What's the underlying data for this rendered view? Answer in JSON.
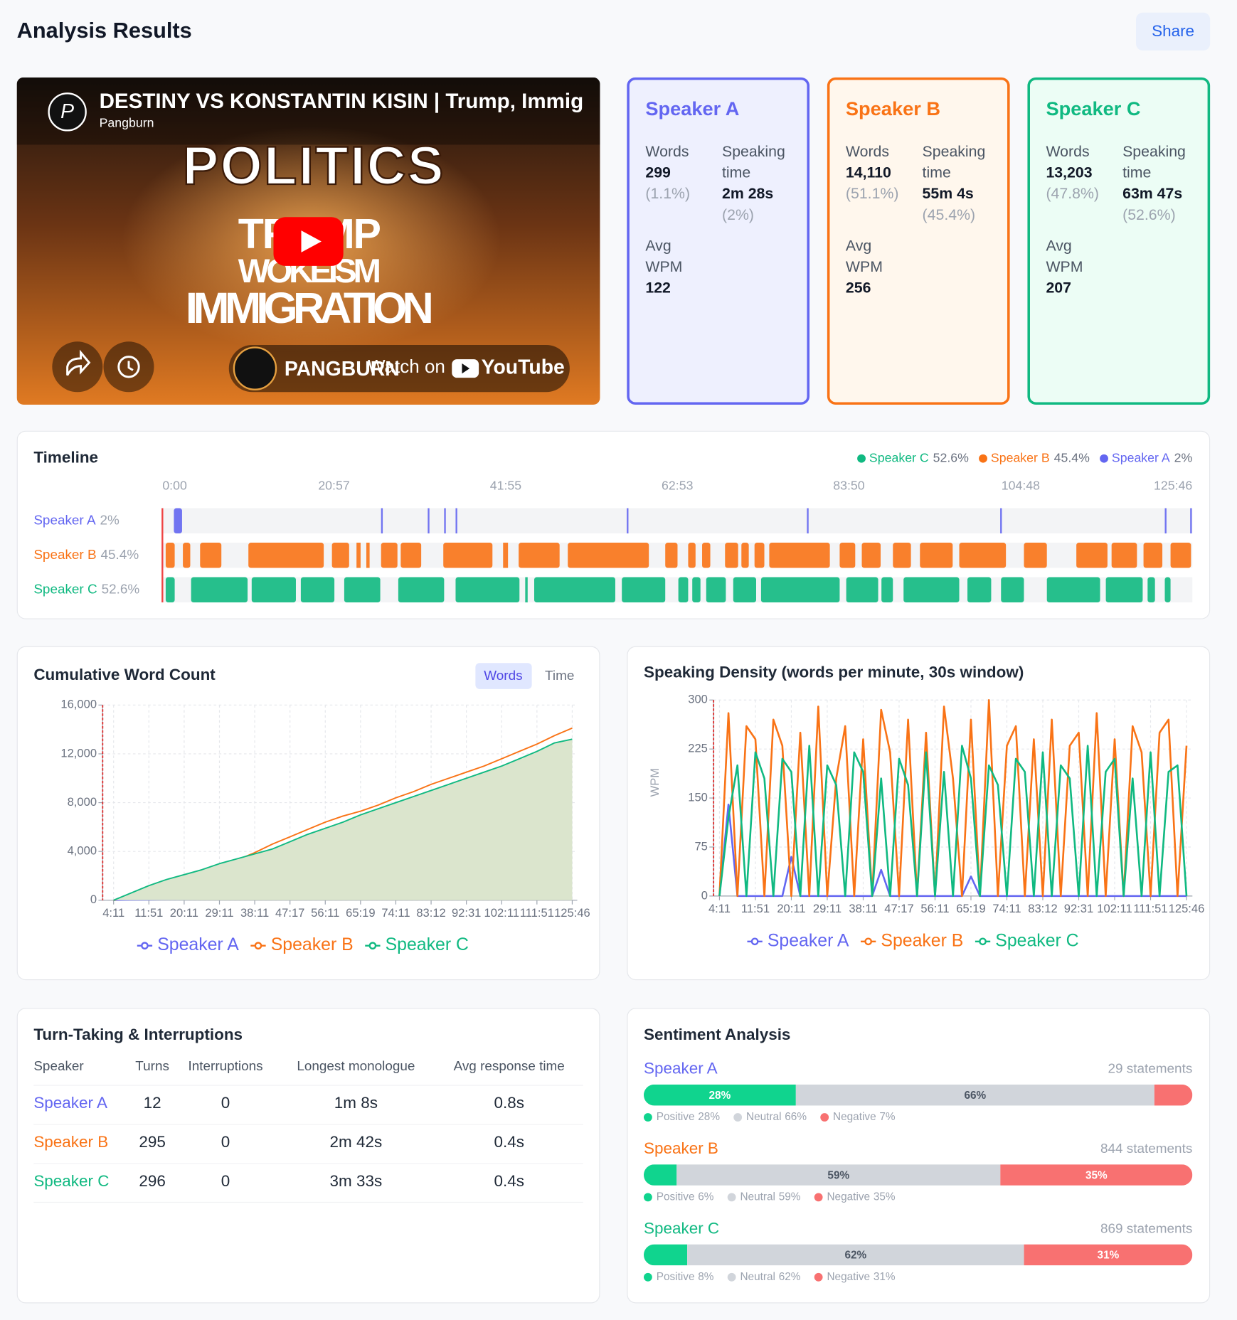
{
  "header": {
    "title": "Analysis Results",
    "share": "Share"
  },
  "video": {
    "title": "DESTINY VS KONSTANTIN KISIN | Trump, Immig",
    "channel": "Pangburn",
    "thumbnail_lines": [
      "POLITICS",
      "TRUMP",
      "WOKEISM",
      "IMMIGRATION"
    ],
    "brand": "PANGBURN",
    "watch_on": "Watch on",
    "platform": "YouTube"
  },
  "speakers": [
    {
      "name": "Speaker A",
      "color": "#6366f1",
      "background": "#eef0fe",
      "words_label": "Words",
      "words": "299",
      "words_share": "(1.1%)",
      "time_label": "Speaking time",
      "time": "2m 28s",
      "time_share": "(2%)",
      "wpm_label": "Avg WPM",
      "wpm": "122"
    },
    {
      "name": "Speaker B",
      "color": "#f97316",
      "background": "#fff7ed",
      "words_label": "Words",
      "words": "14,110",
      "words_share": "(51.1%)",
      "time_label": "Speaking time",
      "time": "55m 4s",
      "time_share": "(45.4%)",
      "wpm_label": "Avg WPM",
      "wpm": "256"
    },
    {
      "name": "Speaker C",
      "color": "#10b981",
      "background": "#ecfdf5",
      "words_label": "Words",
      "words": "13,203",
      "words_share": "(47.8%)",
      "time_label": "Speaking time",
      "time": "63m 47s",
      "time_share": "(52.6%)",
      "wpm_label": "Avg WPM",
      "wpm": "207"
    }
  ],
  "chart_data": [
    {
      "type": "timeline",
      "title": "Timeline",
      "xlim": [
        0,
        125.77
      ],
      "xticks": [
        {
          "value": 0,
          "label": "0:00"
        },
        {
          "value": 20.95,
          "label": "20:57"
        },
        {
          "value": 41.92,
          "label": "41:55"
        },
        {
          "value": 62.88,
          "label": "62:53"
        },
        {
          "value": 83.83,
          "label": "83:50"
        },
        {
          "value": 104.8,
          "label": "104:48"
        },
        {
          "value": 125.77,
          "label": "125:46"
        }
      ],
      "series": [
        {
          "name": "Speaker A",
          "share": "2%",
          "color": "#6366f1",
          "segments": [
            [
              1.4,
              2.4
            ],
            [
              26.7,
              26.9
            ],
            [
              32.4,
              32.6
            ],
            [
              34.4,
              34.6
            ],
            [
              35.8,
              36.0
            ],
            [
              56.7,
              56.9
            ],
            [
              78.7,
              78.9
            ],
            [
              102.3,
              102.5
            ],
            [
              122.4,
              122.6
            ],
            [
              125.5,
              125.7
            ]
          ]
        },
        {
          "name": "Speaker B",
          "share": "45.4%",
          "color": "#f97316",
          "segments": [
            [
              0.4,
              1.5
            ],
            [
              2.5,
              3.4
            ],
            [
              4.6,
              7.2
            ],
            [
              10.5,
              19.7
            ],
            [
              20.7,
              22.8
            ],
            [
              23.7,
              24.2
            ],
            [
              24.9,
              25.3
            ],
            [
              26.7,
              28.7
            ],
            [
              29.1,
              31.6
            ],
            [
              34.3,
              40.3
            ],
            [
              41.6,
              42.2
            ],
            [
              43.5,
              48.5
            ],
            [
              49.5,
              59.4
            ],
            [
              61.4,
              62.9
            ],
            [
              64.2,
              65.1
            ],
            [
              65.9,
              66.9
            ],
            [
              68.7,
              70.3
            ],
            [
              70.7,
              71.6
            ],
            [
              72.3,
              73.5
            ],
            [
              74.1,
              81.5
            ],
            [
              82.7,
              84.6
            ],
            [
              85.4,
              87.7
            ],
            [
              89.2,
              91.4
            ],
            [
              92.5,
              96.5
            ],
            [
              97.3,
              103.0
            ],
            [
              105.2,
              108.0
            ],
            [
              111.6,
              115.4
            ],
            [
              115.9,
              119.0
            ],
            [
              119.8,
              122.1
            ],
            [
              123.1,
              125.6
            ]
          ]
        },
        {
          "name": "Speaker C",
          "share": "52.6%",
          "color": "#10b981",
          "segments": [
            [
              0.4,
              1.5
            ],
            [
              3.5,
              10.4
            ],
            [
              10.9,
              16.3
            ],
            [
              16.9,
              21.0
            ],
            [
              22.2,
              26.6
            ],
            [
              28.8,
              34.4
            ],
            [
              35.8,
              43.6
            ],
            [
              44.3,
              44.6
            ],
            [
              45.4,
              55.3
            ],
            [
              56.1,
              61.4
            ],
            [
              63.0,
              64.2
            ],
            [
              64.7,
              65.7
            ],
            [
              66.4,
              68.8
            ],
            [
              69.7,
              72.5
            ],
            [
              73.1,
              82.7
            ],
            [
              83.5,
              87.4
            ],
            [
              87.8,
              89.2
            ],
            [
              90.5,
              97.3
            ],
            [
              98.3,
              101.2
            ],
            [
              102.4,
              105.2
            ],
            [
              108.0,
              114.5
            ],
            [
              115.2,
              119.7
            ],
            [
              120.3,
              121.2
            ],
            [
              122.4,
              123.1
            ]
          ]
        }
      ]
    },
    {
      "type": "line",
      "title": "Cumulative Word Count",
      "toggle": [
        "Words",
        "Time"
      ],
      "categories": [
        "4:11",
        null,
        "11:51",
        null,
        "20:11",
        null,
        "29:11",
        null,
        "38:11",
        null,
        "47:17",
        null,
        "56:11",
        null,
        "65:19",
        null,
        "74:11",
        null,
        "83:12",
        null,
        "92:31",
        null,
        "102:11",
        null,
        "111:51",
        null,
        "125:46"
      ],
      "ylim": [
        0,
        16000
      ],
      "yticks": [
        0,
        {
          "value": 4000,
          "label": "4,000"
        },
        {
          "value": 8000,
          "label": "8,000"
        },
        {
          "value": 12000,
          "label": "12,000"
        },
        {
          "value": 16000,
          "label": "16,000"
        }
      ],
      "grid": true,
      "series": [
        {
          "name": "Speaker A",
          "color": "#6366f1",
          "values": [
            0,
            20,
            30,
            50,
            60,
            70,
            80,
            90,
            100,
            110,
            120,
            130,
            140,
            150,
            160,
            170,
            180,
            190,
            200,
            210,
            220,
            230,
            240,
            260,
            270,
            280,
            299
          ]
        },
        {
          "name": "Speaker B",
          "color": "#f97316",
          "values": [
            0,
            300,
            700,
            1200,
            1700,
            2200,
            2700,
            3300,
            3900,
            4600,
            5200,
            5800,
            6400,
            6900,
            7300,
            7800,
            8400,
            8900,
            9500,
            10000,
            10500,
            11000,
            11600,
            12200,
            12800,
            13500,
            14110
          ]
        },
        {
          "name": "Speaker C",
          "color": "#10b981",
          "area": true,
          "area_color": "#dbe5cd",
          "values": [
            0,
            600,
            1200,
            1700,
            2100,
            2500,
            3000,
            3400,
            3800,
            4200,
            4800,
            5400,
            5900,
            6400,
            7000,
            7500,
            8000,
            8500,
            9000,
            9500,
            10000,
            10500,
            11000,
            11600,
            12200,
            12900,
            13203
          ]
        }
      ]
    },
    {
      "type": "line",
      "title": "Speaking Density (words per minute, 30s window)",
      "y_label": "WPM",
      "categories": [
        "4:11",
        null,
        null,
        null,
        "11:51",
        null,
        null,
        null,
        "20:11",
        null,
        null,
        null,
        "29:11",
        null,
        null,
        null,
        "38:11",
        null,
        null,
        null,
        "47:17",
        null,
        null,
        null,
        "56:11",
        null,
        null,
        null,
        "65:19",
        null,
        null,
        null,
        "74:11",
        null,
        null,
        null,
        "83:12",
        null,
        null,
        null,
        "92:31",
        null,
        null,
        null,
        "102:11",
        null,
        null,
        null,
        "111:51",
        null,
        null,
        null,
        "125:46"
      ],
      "ylim": [
        0,
        300
      ],
      "yticks": [
        0,
        75,
        150,
        225,
        300
      ],
      "grid": true,
      "series": [
        {
          "name": "Speaker A",
          "color": "#6366f1",
          "values": [
            0,
            140,
            0,
            0,
            0,
            0,
            0,
            0,
            60,
            0,
            0,
            0,
            0,
            0,
            0,
            0,
            0,
            0,
            40,
            0,
            0,
            0,
            0,
            0,
            0,
            0,
            0,
            0,
            30,
            0,
            0,
            0,
            0,
            0,
            0,
            0,
            0,
            0,
            0,
            0,
            0,
            0,
            0,
            0,
            0,
            0,
            0,
            0,
            0,
            0,
            0,
            0,
            0
          ]
        },
        {
          "name": "Speaker B",
          "color": "#f97316",
          "values": [
            0,
            280,
            0,
            260,
            240,
            0,
            270,
            230,
            0,
            250,
            0,
            290,
            0,
            180,
            260,
            0,
            240,
            0,
            285,
            220,
            0,
            270,
            0,
            250,
            0,
            290,
            180,
            0,
            270,
            0,
            300,
            0,
            230,
            260,
            0,
            240,
            0,
            270,
            0,
            230,
            250,
            0,
            280,
            0,
            240,
            0,
            260,
            220,
            0,
            250,
            270,
            0,
            230
          ]
        },
        {
          "name": "Speaker C",
          "color": "#10b981",
          "values": [
            0,
            120,
            200,
            0,
            220,
            180,
            0,
            210,
            190,
            0,
            230,
            0,
            200,
            170,
            0,
            220,
            190,
            0,
            180,
            0,
            210,
            170,
            0,
            220,
            0,
            190,
            0,
            230,
            180,
            0,
            200,
            170,
            0,
            210,
            190,
            0,
            220,
            0,
            200,
            180,
            0,
            230,
            0,
            190,
            210,
            0,
            180,
            0,
            220,
            0,
            190,
            200,
            0
          ]
        }
      ]
    }
  ],
  "turn_taking": {
    "title": "Turn-Taking & Interruptions",
    "columns": [
      "Speaker",
      "Turns",
      "Interruptions",
      "Longest monologue",
      "Avg response time"
    ],
    "rows": [
      [
        "Speaker A",
        "12",
        "0",
        "1m 8s",
        "0.8s"
      ],
      [
        "Speaker B",
        "295",
        "0",
        "2m 42s",
        "0.4s"
      ],
      [
        "Speaker C",
        "296",
        "0",
        "3m 33s",
        "0.4s"
      ]
    ]
  },
  "sentiment": {
    "title": "Sentiment Analysis",
    "speakers": [
      {
        "name": "Speaker A",
        "statements": "29 statements",
        "segments": [
          {
            "name": "Positive",
            "value": 28,
            "label": "28%",
            "color": "#10d48e"
          },
          {
            "name": "Neutral",
            "value": 66,
            "label": "66%",
            "color": "#d1d5db"
          },
          {
            "name": "Negative",
            "value": 7,
            "label": "7%",
            "color": "#f87171"
          }
        ]
      },
      {
        "name": "Speaker B",
        "statements": "844 statements",
        "segments": [
          {
            "name": "Positive",
            "value": 6,
            "label": "6%",
            "color": "#10d48e"
          },
          {
            "name": "Neutral",
            "value": 59,
            "label": "59%",
            "color": "#d1d5db"
          },
          {
            "name": "Negative",
            "value": 35,
            "label": "35%",
            "color": "#f87171"
          }
        ]
      },
      {
        "name": "Speaker C",
        "statements": "869 statements",
        "segments": [
          {
            "name": "Positive",
            "value": 8,
            "label": "8%",
            "color": "#10d48e"
          },
          {
            "name": "Neutral",
            "value": 62,
            "label": "62%",
            "color": "#d1d5db"
          },
          {
            "name": "Negative",
            "value": 31,
            "label": "31%",
            "color": "#f87171"
          }
        ]
      }
    ]
  }
}
